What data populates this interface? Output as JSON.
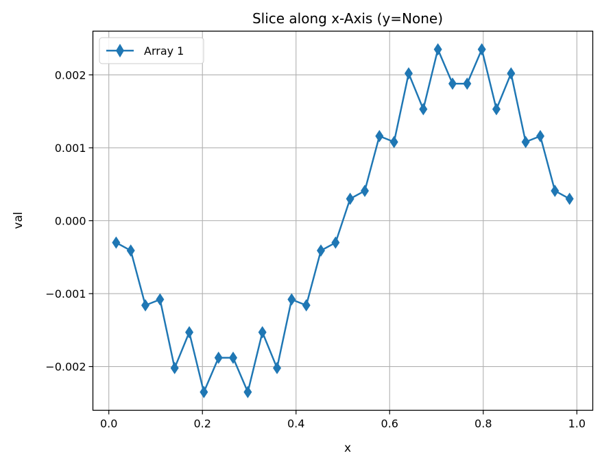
{
  "chart_data": {
    "type": "line",
    "title": "Slice along x-Axis (y=None)",
    "xlabel": "x",
    "ylabel": "val",
    "xlim": [
      -0.034,
      1.034
    ],
    "ylim": [
      -0.0026,
      0.0026
    ],
    "xticks": [
      0.0,
      0.2,
      0.4,
      0.6,
      0.8,
      1.0
    ],
    "xtick_labels": [
      "0.0",
      "0.2",
      "0.4",
      "0.6",
      "0.8",
      "1.0"
    ],
    "yticks": [
      -0.002,
      -0.001,
      0.0,
      0.001,
      0.002
    ],
    "ytick_labels": [
      "−0.002",
      "−0.001",
      "0.000",
      "0.001",
      "0.002"
    ],
    "grid": true,
    "legend": "top-left",
    "color": "#1f77b4",
    "marker": "thin-diamond",
    "series": [
      {
        "name": "Array 1",
        "x": [
          0.0156,
          0.0469,
          0.0781,
          0.1094,
          0.1406,
          0.1719,
          0.2031,
          0.2344,
          0.2656,
          0.2969,
          0.3281,
          0.3594,
          0.3906,
          0.4219,
          0.4531,
          0.4844,
          0.5156,
          0.5469,
          0.5781,
          0.6094,
          0.6406,
          0.6719,
          0.7031,
          0.7344,
          0.7656,
          0.7969,
          0.8281,
          0.8594,
          0.8906,
          0.9219,
          0.9531,
          0.9844
        ],
        "values": [
          -0.0003,
          -0.00041,
          -0.00116,
          -0.00108,
          -0.00202,
          -0.00153,
          -0.00235,
          -0.00188,
          -0.00188,
          -0.00235,
          -0.00153,
          -0.00202,
          -0.00108,
          -0.00116,
          -0.00041,
          -0.0003,
          0.0003,
          0.00041,
          0.00116,
          0.00108,
          0.00202,
          0.00153,
          0.00235,
          0.00188,
          0.00188,
          0.00235,
          0.00153,
          0.00202,
          0.00108,
          0.00116,
          0.00041,
          0.0003
        ]
      }
    ]
  }
}
